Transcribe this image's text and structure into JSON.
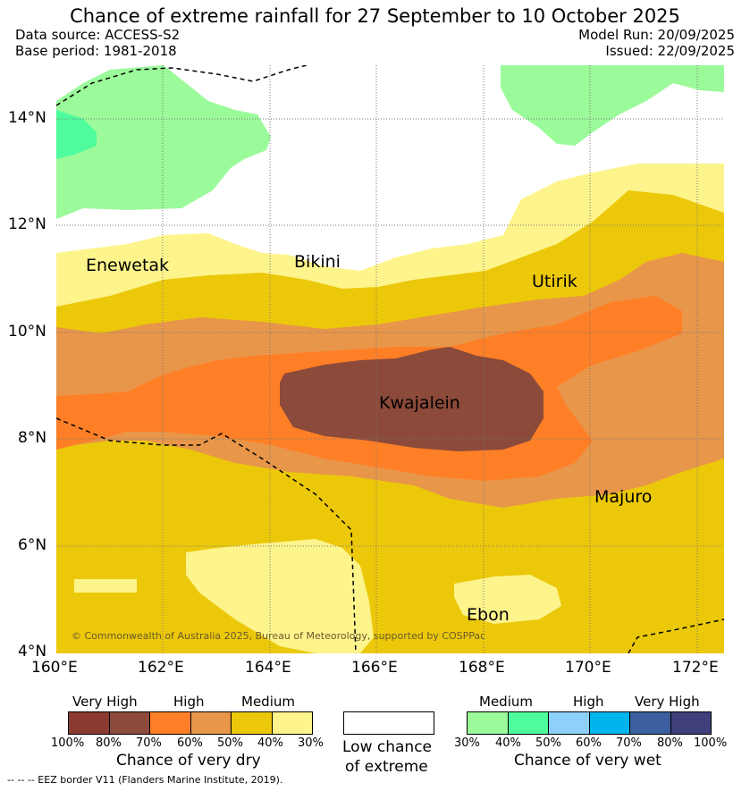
{
  "title": "Chance of extreme rainfall for 27 September to 10 October 2025",
  "meta": {
    "data_source": "Data source: ACCESS-S2",
    "base_period": "Base period: 1981-2018",
    "model_run": "Model Run: 20/09/2025",
    "issued": "Issued: 22/09/2025"
  },
  "map": {
    "lat_labels": [
      "14°N",
      "12°N",
      "10°N",
      "8°N",
      "6°N",
      "4°N"
    ],
    "lon_labels": [
      "160°E",
      "162°E",
      "164°E",
      "166°E",
      "168°E",
      "170°E",
      "172°E"
    ],
    "places": {
      "enewetak": "Enewetak",
      "bikini": "Bikini",
      "utirik": "Utirik",
      "kwajalein": "Kwajalein",
      "majuro": "Majuro",
      "ebon": "Ebon"
    },
    "copyright": "© Commonwealth of Australia 2025, Bureau of Meteorology, supported by COSPPac"
  },
  "legend": {
    "dry": {
      "headers": [
        "Very High",
        "High",
        "Medium"
      ],
      "ticks": [
        "100%",
        "80%",
        "70%",
        "60%",
        "50%",
        "40%",
        "30%"
      ],
      "title": "Chance of very dry",
      "colors": [
        "#8b3a2f",
        "#8b4a3a",
        "#ff7f27",
        "#e8964a",
        "#ecc80a",
        "#fdf48c"
      ]
    },
    "low": {
      "title_line1": "Low chance",
      "title_line2": "of extreme"
    },
    "wet": {
      "headers": [
        "Medium",
        "High",
        "Very High"
      ],
      "ticks": [
        "30%",
        "40%",
        "50%",
        "60%",
        "70%",
        "80%",
        "100%"
      ],
      "title": "Chance of very wet",
      "colors": [
        "#9bfa9a",
        "#4efc9d",
        "#8fd0fb",
        "#00b4ee",
        "#3b5f9f",
        "#3f3f7c"
      ]
    }
  },
  "footnote": "-- -- -- EEZ border V11 (Flanders Marine Institute, 2019)."
}
